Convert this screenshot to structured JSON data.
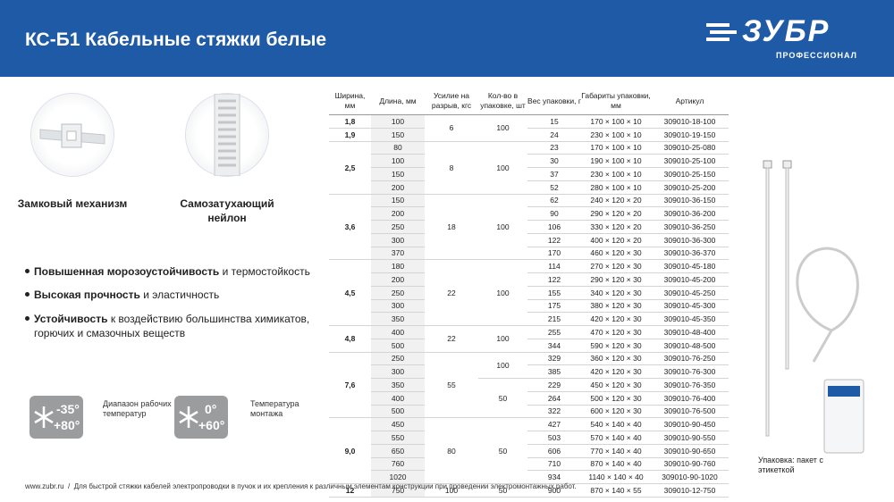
{
  "header": {
    "title": "КС-Б1 Кабельные стяжки белые",
    "logo": "ЗУБР",
    "logo_sub": "ПРОФЕССИОНАЛ"
  },
  "features": [
    {
      "label": "Замковый механизм"
    },
    {
      "label": "Самозатухающий нейлон"
    }
  ],
  "bullets": [
    {
      "bold": "Повышенная морозоустойчивость",
      "text": " и термостойкость"
    },
    {
      "bold": "Высокая прочность",
      "text": " и эластичность"
    },
    {
      "bold": "Устойчивость",
      "text": " к воздействию большинства химикатов, горючих и смазочных веществ"
    }
  ],
  "badges": [
    {
      "top": "-35°",
      "bottom": "+80°",
      "caption": "Диапазон рабочих температур"
    },
    {
      "top": "0°",
      "bottom": "+60°",
      "caption": "Температура монтажа"
    }
  ],
  "table": {
    "columns": [
      "Ширина, мм",
      "Длина, мм",
      "Усилие на разрыв, кгс",
      "Кол-во в упаковке, шт",
      "Вес упаковки, г",
      "Габариты упаковки, мм",
      "Артикул"
    ],
    "groups": [
      {
        "force": "6",
        "qty": "100",
        "parts": [
          {
            "width": "1,8",
            "rows": [
              [
                "100",
                "15",
                "170 × 100 × 10",
                "309010-18-100"
              ]
            ]
          },
          {
            "width": "1,9",
            "rows": [
              [
                "150",
                "24",
                "230 × 100 × 10",
                "309010-19-150"
              ]
            ]
          }
        ]
      },
      {
        "width": "2,5",
        "force": "8",
        "qty": "100",
        "rows": [
          [
            "80",
            "23",
            "170 × 100 × 10",
            "309010-25-080"
          ],
          [
            "100",
            "30",
            "190 × 100 × 10",
            "309010-25-100"
          ],
          [
            "150",
            "37",
            "230 × 100 × 10",
            "309010-25-150"
          ],
          [
            "200",
            "52",
            "280 × 100 × 10",
            "309010-25-200"
          ]
        ]
      },
      {
        "width": "3,6",
        "force": "18",
        "qty": "100",
        "rows": [
          [
            "150",
            "62",
            "240 × 120 × 20",
            "309010-36-150"
          ],
          [
            "200",
            "90",
            "290 × 120 × 20",
            "309010-36-200"
          ],
          [
            "250",
            "106",
            "330 × 120 × 20",
            "309010-36-250"
          ],
          [
            "300",
            "122",
            "400 × 120 × 20",
            "309010-36-300"
          ],
          [
            "370",
            "170",
            "460 × 120 × 30",
            "309010-36-370"
          ]
        ]
      },
      {
        "width": "4,5",
        "force": "22",
        "qty": "100",
        "rows": [
          [
            "180",
            "114",
            "270 × 120 × 30",
            "309010-45-180"
          ],
          [
            "200",
            "122",
            "290 × 120 × 30",
            "309010-45-200"
          ],
          [
            "250",
            "155",
            "340 × 120 × 30",
            "309010-45-250"
          ],
          [
            "300",
            "175",
            "380 × 120 × 30",
            "309010-45-300"
          ],
          [
            "350",
            "215",
            "420 × 120 × 30",
            "309010-45-350"
          ]
        ]
      },
      {
        "width": "4,8",
        "force": "22",
        "qty": "100",
        "rows": [
          [
            "400",
            "255",
            "470 × 120 × 30",
            "309010-48-400"
          ],
          [
            "500",
            "344",
            "590 × 120 × 30",
            "309010-48-500"
          ]
        ]
      },
      {
        "width": "7,6",
        "force": "55",
        "parts": [
          {
            "qty": "100",
            "rows": [
              [
                "250",
                "329",
                "360 × 120 × 30",
                "309010-76-250"
              ],
              [
                "300",
                "385",
                "420 × 120 × 30",
                "309010-76-300"
              ]
            ]
          },
          {
            "qty": "50",
            "rows": [
              [
                "350",
                "229",
                "450 × 120 × 30",
                "309010-76-350"
              ],
              [
                "400",
                "264",
                "500 × 120 × 30",
                "309010-76-400"
              ],
              [
                "500",
                "322",
                "600 × 120 × 30",
                "309010-76-500"
              ]
            ]
          }
        ]
      },
      {
        "width": "9,0",
        "force": "80",
        "qty": "50",
        "rows": [
          [
            "450",
            "427",
            "540 × 140 × 40",
            "309010-90-450"
          ],
          [
            "550",
            "503",
            "570 × 140 × 40",
            "309010-90-550"
          ],
          [
            "650",
            "606",
            "770 × 140 × 40",
            "309010-90-650"
          ],
          [
            "760",
            "710",
            "870 × 140 × 40",
            "309010-90-760"
          ],
          [
            "1020",
            "934",
            "1140 × 140 × 40",
            "309010-90-1020"
          ]
        ]
      },
      {
        "width": "12",
        "force": "100",
        "qty": "50",
        "rows": [
          [
            "750",
            "900",
            "870 × 140 × 55",
            "309010-12-750"
          ]
        ]
      }
    ]
  },
  "package_caption": "Упаковка: пакет с этикеткой",
  "footer": {
    "site": "www.zubr.ru",
    "separator": "/",
    "text": "Для быстрой стяжки кабелей электропроводки в пучок и их крепления к различным элементам конструкции при проведении электромонтажных работ."
  }
}
